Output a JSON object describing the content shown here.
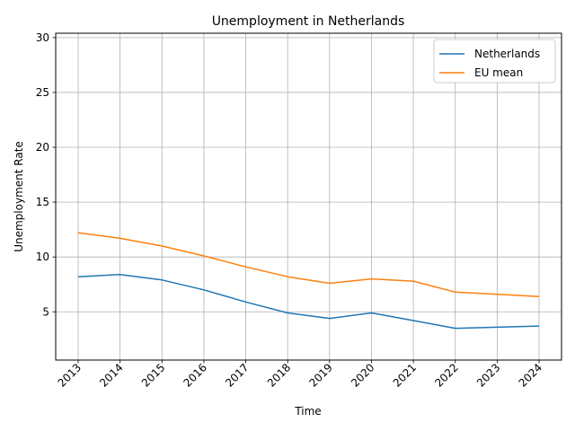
{
  "chart_data": {
    "type": "line",
    "title": "Unemployment in Netherlands",
    "xlabel": "Time",
    "ylabel": "Unemployment Rate",
    "categories": [
      "2013",
      "2014",
      "2015",
      "2016",
      "2017",
      "2018",
      "2019",
      "2020",
      "2021",
      "2022",
      "2023",
      "2024"
    ],
    "series": [
      {
        "name": "Netherlands",
        "color": "#1f77b4",
        "values": [
          8.2,
          8.4,
          7.9,
          7.0,
          5.9,
          4.9,
          4.4,
          4.9,
          4.2,
          3.5,
          3.6,
          3.7
        ]
      },
      {
        "name": "EU mean",
        "color": "#ff7f0e",
        "values": [
          12.2,
          11.7,
          11.0,
          10.1,
          9.1,
          8.2,
          7.6,
          8.0,
          7.8,
          6.8,
          6.6,
          6.4
        ]
      }
    ],
    "ylim": [
      0.6,
      30.4
    ],
    "yticks": [
      5,
      10,
      15,
      20,
      25,
      30
    ],
    "grid": true,
    "legend_position": "top-right"
  }
}
